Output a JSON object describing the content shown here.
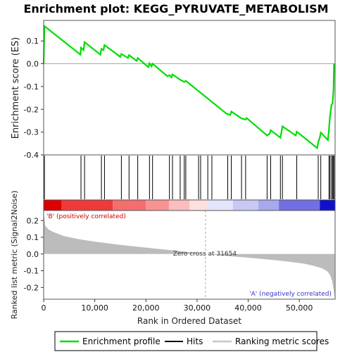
{
  "chart_data": {
    "type": "line",
    "title": "Enrichment plot: KEGG_PYRUVATE_METABOLISM",
    "x_label": "Rank in Ordered Dataset",
    "x_range": [
      0,
      57000
    ],
    "x_ticks": [
      0,
      10000,
      20000,
      30000,
      40000,
      50000
    ],
    "x_tick_labels": [
      "0",
      "10,000",
      "20,000",
      "30,000",
      "40,000",
      "50,000"
    ],
    "es_panel": {
      "y_label": "Enrichment score (ES)",
      "y_range": [
        -0.4,
        0.19
      ],
      "y_ticks": [
        0.1,
        0.0,
        -0.1,
        -0.2,
        -0.3,
        -0.4
      ],
      "y_tick_labels": [
        "0.1",
        "0.0",
        "-0.1",
        "-0.2",
        "-0.3",
        "-0.4"
      ],
      "series_name": "Enrichment profile",
      "color": "#00dd00",
      "points": [
        [
          0,
          0.0
        ],
        [
          150,
          0.165
        ],
        [
          7200,
          0.04
        ],
        [
          7300,
          0.07
        ],
        [
          7800,
          0.06
        ],
        [
          8000,
          0.095
        ],
        [
          11100,
          0.04
        ],
        [
          11300,
          0.065
        ],
        [
          11700,
          0.06
        ],
        [
          11900,
          0.082
        ],
        [
          15000,
          0.03
        ],
        [
          15200,
          0.043
        ],
        [
          16500,
          0.025
        ],
        [
          16700,
          0.038
        ],
        [
          18200,
          0.012
        ],
        [
          18400,
          0.025
        ],
        [
          20500,
          -0.015
        ],
        [
          20700,
          0.002
        ],
        [
          21100,
          -0.012
        ],
        [
          21300,
          0.0
        ],
        [
          24200,
          -0.055
        ],
        [
          24600,
          -0.05
        ],
        [
          25000,
          -0.06
        ],
        [
          25200,
          -0.047
        ],
        [
          26700,
          -0.07
        ],
        [
          27500,
          -0.08
        ],
        [
          27800,
          -0.075
        ],
        [
          35800,
          -0.22
        ],
        [
          36500,
          -0.225
        ],
        [
          36700,
          -0.21
        ],
        [
          38700,
          -0.24
        ],
        [
          39500,
          -0.245
        ],
        [
          39700,
          -0.238
        ],
        [
          43700,
          -0.315
        ],
        [
          44200,
          -0.307
        ],
        [
          44400,
          -0.292
        ],
        [
          46300,
          -0.325
        ],
        [
          46500,
          -0.302
        ],
        [
          46700,
          -0.275
        ],
        [
          49300,
          -0.315
        ],
        [
          49500,
          -0.298
        ],
        [
          53500,
          -0.37
        ],
        [
          53700,
          -0.345
        ],
        [
          54000,
          -0.325
        ],
        [
          54200,
          -0.302
        ],
        [
          55600,
          -0.335
        ],
        [
          55800,
          -0.288
        ],
        [
          56000,
          -0.232
        ],
        [
          56300,
          -0.18
        ],
        [
          56500,
          -0.175
        ],
        [
          56700,
          -0.11
        ],
        [
          56800,
          0.0
        ]
      ]
    },
    "hits_panel": {
      "series_name": "Hits",
      "positions": [
        150,
        7300,
        8000,
        11300,
        11900,
        15200,
        16700,
        18400,
        20700,
        21300,
        24600,
        25200,
        26700,
        27500,
        27800,
        30300,
        30700,
        32100,
        32900,
        36000,
        36700,
        38700,
        39500,
        43700,
        44400,
        46300,
        46700,
        49500,
        53700,
        54200,
        55800,
        56000,
        56300,
        56500,
        56700,
        56800
      ]
    },
    "heatmap_bar": {
      "positive_label": "'B' (positively correlated)",
      "negative_label": "'A' (negatively correlated)",
      "segments": [
        {
          "from": 0,
          "to": 3500,
          "color": "#dd0000"
        },
        {
          "from": 3500,
          "to": 13500,
          "color": "#ee3a3a"
        },
        {
          "from": 13500,
          "to": 20000,
          "color": "#f46e6e"
        },
        {
          "from": 20000,
          "to": 24500,
          "color": "#f89292"
        },
        {
          "from": 24500,
          "to": 28500,
          "color": "#fbbdbd"
        },
        {
          "from": 28500,
          "to": 32000,
          "color": "#fde0e0"
        },
        {
          "from": 32000,
          "to": 37000,
          "color": "#e4e4fa"
        },
        {
          "from": 37000,
          "to": 42000,
          "color": "#c8c8f4"
        },
        {
          "from": 42000,
          "to": 46000,
          "color": "#a8a8ee"
        },
        {
          "from": 46000,
          "to": 54000,
          "color": "#7070e4"
        },
        {
          "from": 54000,
          "to": 57000,
          "color": "#1010cc"
        }
      ]
    },
    "metric_panel": {
      "y_label": "Ranked list metric (Signal2Noise)",
      "y_range": [
        -0.27,
        0.26
      ],
      "y_ticks": [
        0.2,
        0.1,
        0.0,
        -0.1,
        -0.2
      ],
      "y_tick_labels": [
        "0.2",
        "0.1",
        "0.0",
        "-0.1",
        "-0.2"
      ],
      "series_name": "Ranking metric scores",
      "zero_cross": 31654,
      "zero_cross_label": "Zero cross at 31654",
      "curve": [
        [
          0,
          0.25
        ],
        [
          300,
          0.17
        ],
        [
          1000,
          0.145
        ],
        [
          2000,
          0.13
        ],
        [
          4000,
          0.107
        ],
        [
          7000,
          0.088
        ],
        [
          10000,
          0.074
        ],
        [
          14000,
          0.058
        ],
        [
          18000,
          0.045
        ],
        [
          22000,
          0.032
        ],
        [
          26000,
          0.02
        ],
        [
          29000,
          0.009
        ],
        [
          31654,
          0.0
        ],
        [
          35000,
          -0.009
        ],
        [
          40000,
          -0.022
        ],
        [
          45000,
          -0.036
        ],
        [
          48000,
          -0.046
        ],
        [
          51000,
          -0.058
        ],
        [
          53000,
          -0.072
        ],
        [
          54500,
          -0.086
        ],
        [
          55500,
          -0.104
        ],
        [
          56000,
          -0.125
        ],
        [
          56400,
          -0.16
        ],
        [
          56700,
          -0.21
        ],
        [
          56900,
          -0.255
        ]
      ]
    },
    "legend": [
      {
        "label": "Enrichment profile",
        "color": "#00dd00"
      },
      {
        "label": "Hits",
        "color": "#000000"
      },
      {
        "label": "Ranking metric scores",
        "color": "#c8c8c8"
      }
    ]
  }
}
